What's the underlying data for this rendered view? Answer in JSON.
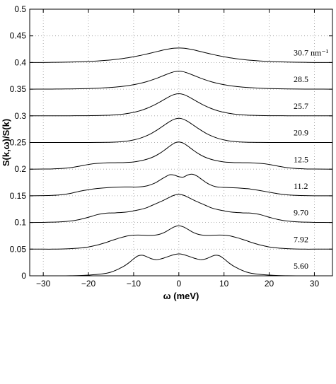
{
  "chart_data": {
    "type": "line",
    "title": "",
    "xlabel": "ω (meV)",
    "ylabel": "S(k,ω)/S(k)",
    "xlim": [
      -33,
      34
    ],
    "ylim": [
      0,
      0.5
    ],
    "xticks": [
      -30,
      -20,
      -10,
      0,
      10,
      20,
      30
    ],
    "xtick_labels": [
      "−30",
      "−20",
      "−10",
      "0",
      "10",
      "20",
      "30"
    ],
    "yticks": [
      0,
      0.05,
      0.1,
      0.15,
      0.2,
      0.25,
      0.3,
      0.35,
      0.4,
      0.45,
      0.5
    ],
    "ytick_labels": [
      "0",
      "0.05",
      "0.1",
      "0.15",
      "0.2",
      "0.25",
      "0.3",
      "0.35",
      "0.4",
      "0.45",
      "0.5"
    ],
    "grid": true,
    "x": [
      -33,
      -30,
      -28,
      -26,
      -24,
      -22,
      -20,
      -18,
      -16,
      -15,
      -14,
      -13,
      -12,
      -11,
      -10,
      -9,
      -8,
      -7,
      -6,
      -5,
      -4,
      -3,
      -2,
      -1,
      0,
      1,
      2,
      3,
      4,
      5,
      6,
      7,
      8,
      9,
      10,
      11,
      12,
      13,
      14,
      15,
      16,
      18,
      20,
      22,
      24,
      26,
      28,
      30,
      34
    ],
    "series": [
      {
        "label": "5.60",
        "offset": 0,
        "values": [
          0,
          0,
          0,
          0,
          0.0002,
          0.0005,
          0.0013,
          0.0026,
          0.0048,
          0.007,
          0.0102,
          0.0142,
          0.0188,
          0.0248,
          0.0318,
          0.0375,
          0.0384,
          0.0354,
          0.0318,
          0.0302,
          0.0316,
          0.0342,
          0.0372,
          0.0398,
          0.0412,
          0.0398,
          0.0372,
          0.0342,
          0.0316,
          0.0302,
          0.0318,
          0.0354,
          0.0384,
          0.0375,
          0.0318,
          0.0248,
          0.0188,
          0.0142,
          0.0102,
          0.007,
          0.0048,
          0.0026,
          0.0013,
          0.0005,
          0.0002,
          0,
          0,
          0,
          0
        ]
      },
      {
        "label": "7.92",
        "offset": 0.05,
        "values": [
          0,
          0,
          0,
          0.0003,
          0.0009,
          0.002,
          0.0041,
          0.0078,
          0.0128,
          0.0158,
          0.0185,
          0.0212,
          0.0235,
          0.0252,
          0.0262,
          0.0265,
          0.0262,
          0.0258,
          0.0258,
          0.0266,
          0.0286,
          0.0322,
          0.0372,
          0.0418,
          0.0438,
          0.0418,
          0.0372,
          0.0322,
          0.0286,
          0.0266,
          0.0258,
          0.0258,
          0.0262,
          0.0265,
          0.0262,
          0.0252,
          0.0235,
          0.0212,
          0.0185,
          0.0158,
          0.0128,
          0.0078,
          0.0041,
          0.002,
          0.0009,
          0.0003,
          0,
          0,
          0
        ]
      },
      {
        "label": "9.70",
        "offset": 0.1,
        "values": [
          0,
          0.0002,
          0.0006,
          0.0013,
          0.0028,
          0.0055,
          0.0098,
          0.0148,
          0.0175,
          0.0178,
          0.0181,
          0.0186,
          0.0192,
          0.0202,
          0.0218,
          0.0235,
          0.0254,
          0.0281,
          0.0318,
          0.0355,
          0.0392,
          0.0432,
          0.0475,
          0.0512,
          0.0528,
          0.0512,
          0.0475,
          0.0432,
          0.0392,
          0.0355,
          0.0318,
          0.0281,
          0.0254,
          0.0235,
          0.0218,
          0.0202,
          0.0192,
          0.0186,
          0.0181,
          0.0178,
          0.0175,
          0.0148,
          0.0098,
          0.0055,
          0.0028,
          0.0013,
          0.0006,
          0.0002,
          0
        ]
      },
      {
        "label": "11.2",
        "offset": 0.15,
        "values": [
          0,
          0.0003,
          0.0008,
          0.002,
          0.0045,
          0.0085,
          0.0115,
          0.0138,
          0.0152,
          0.0157,
          0.0161,
          0.0164,
          0.0166,
          0.0166,
          0.0165,
          0.0166,
          0.0172,
          0.0188,
          0.0215,
          0.0252,
          0.0305,
          0.0355,
          0.0395,
          0.0388,
          0.0358,
          0.0352,
          0.0392,
          0.0405,
          0.0372,
          0.0312,
          0.0252,
          0.0205,
          0.0175,
          0.0162,
          0.0157,
          0.0155,
          0.0152,
          0.0148,
          0.0142,
          0.0135,
          0.0125,
          0.0098,
          0.0068,
          0.0038,
          0.0018,
          0.0008,
          0.0003,
          0.0001,
          0
        ]
      },
      {
        "label": "12.5",
        "offset": 0.2,
        "values": [
          0,
          0.0002,
          0.0005,
          0.0012,
          0.0028,
          0.0055,
          0.0088,
          0.0108,
          0.0118,
          0.012,
          0.0121,
          0.0122,
          0.0124,
          0.0128,
          0.0136,
          0.0148,
          0.0165,
          0.0188,
          0.0218,
          0.0258,
          0.0308,
          0.0368,
          0.0432,
          0.0488,
          0.051,
          0.0488,
          0.0432,
          0.0368,
          0.0308,
          0.0258,
          0.0218,
          0.0188,
          0.0165,
          0.0148,
          0.0136,
          0.0128,
          0.0124,
          0.0122,
          0.0121,
          0.012,
          0.0118,
          0.0108,
          0.0088,
          0.0055,
          0.0028,
          0.0012,
          0.0005,
          0.0002,
          0
        ]
      },
      {
        "label": "20.9",
        "offset": 0.25,
        "values": [
          0,
          0,
          0,
          0,
          0,
          0,
          0,
          0.0001,
          0.0003,
          0.0005,
          0.0008,
          0.0013,
          0.0021,
          0.0032,
          0.0048,
          0.0069,
          0.0097,
          0.0132,
          0.0174,
          0.0224,
          0.028,
          0.0338,
          0.0394,
          0.0437,
          0.0455,
          0.0437,
          0.0394,
          0.0338,
          0.028,
          0.0224,
          0.0174,
          0.0132,
          0.0097,
          0.0069,
          0.0048,
          0.0032,
          0.0021,
          0.0013,
          0.0008,
          0.0005,
          0.0003,
          0.0001,
          0,
          0,
          0,
          0,
          0,
          0,
          0
        ]
      },
      {
        "label": "25.7",
        "offset": 0.3,
        "values": [
          0,
          0,
          0,
          0,
          0.0001,
          0.0002,
          0.0003,
          0.0006,
          0.001,
          0.0014,
          0.0019,
          0.0026,
          0.0036,
          0.0049,
          0.0065,
          0.0086,
          0.0112,
          0.0143,
          0.018,
          0.0222,
          0.0269,
          0.0318,
          0.0365,
          0.0401,
          0.0415,
          0.0401,
          0.0365,
          0.0318,
          0.0269,
          0.0222,
          0.018,
          0.0143,
          0.0112,
          0.0086,
          0.0065,
          0.0049,
          0.0036,
          0.0026,
          0.0019,
          0.0014,
          0.001,
          0.0006,
          0.0003,
          0.0002,
          0.0001,
          0,
          0,
          0,
          0
        ]
      },
      {
        "label": "28.5",
        "offset": 0.35,
        "values": [
          0,
          0.0001,
          0.0002,
          0.0003,
          0.0005,
          0.0008,
          0.0012,
          0.0018,
          0.0027,
          0.0033,
          0.004,
          0.0048,
          0.0058,
          0.007,
          0.0084,
          0.0101,
          0.0121,
          0.0144,
          0.0171,
          0.0201,
          0.0234,
          0.0268,
          0.0301,
          0.0327,
          0.0338,
          0.0327,
          0.0301,
          0.0268,
          0.0234,
          0.0201,
          0.0171,
          0.0144,
          0.0121,
          0.0101,
          0.0084,
          0.007,
          0.0058,
          0.0048,
          0.004,
          0.0033,
          0.0027,
          0.0018,
          0.0012,
          0.0008,
          0.0005,
          0.0003,
          0.0002,
          0.0001,
          0
        ]
      },
      {
        "label": "30.7 nm⁻¹",
        "offset": 0.4,
        "values": [
          0,
          0.0001,
          0.0003,
          0.0005,
          0.0008,
          0.0013,
          0.002,
          0.0029,
          0.0041,
          0.0049,
          0.0058,
          0.0068,
          0.008,
          0.0093,
          0.0108,
          0.0124,
          0.0142,
          0.0161,
          0.0181,
          0.0202,
          0.0223,
          0.0242,
          0.0258,
          0.0269,
          0.0272,
          0.0269,
          0.0258,
          0.0242,
          0.0223,
          0.0202,
          0.0181,
          0.0161,
          0.0142,
          0.0124,
          0.0108,
          0.0093,
          0.008,
          0.0068,
          0.0058,
          0.0049,
          0.0041,
          0.0029,
          0.002,
          0.0013,
          0.0008,
          0.0005,
          0.0003,
          0.0001,
          0
        ]
      }
    ]
  }
}
